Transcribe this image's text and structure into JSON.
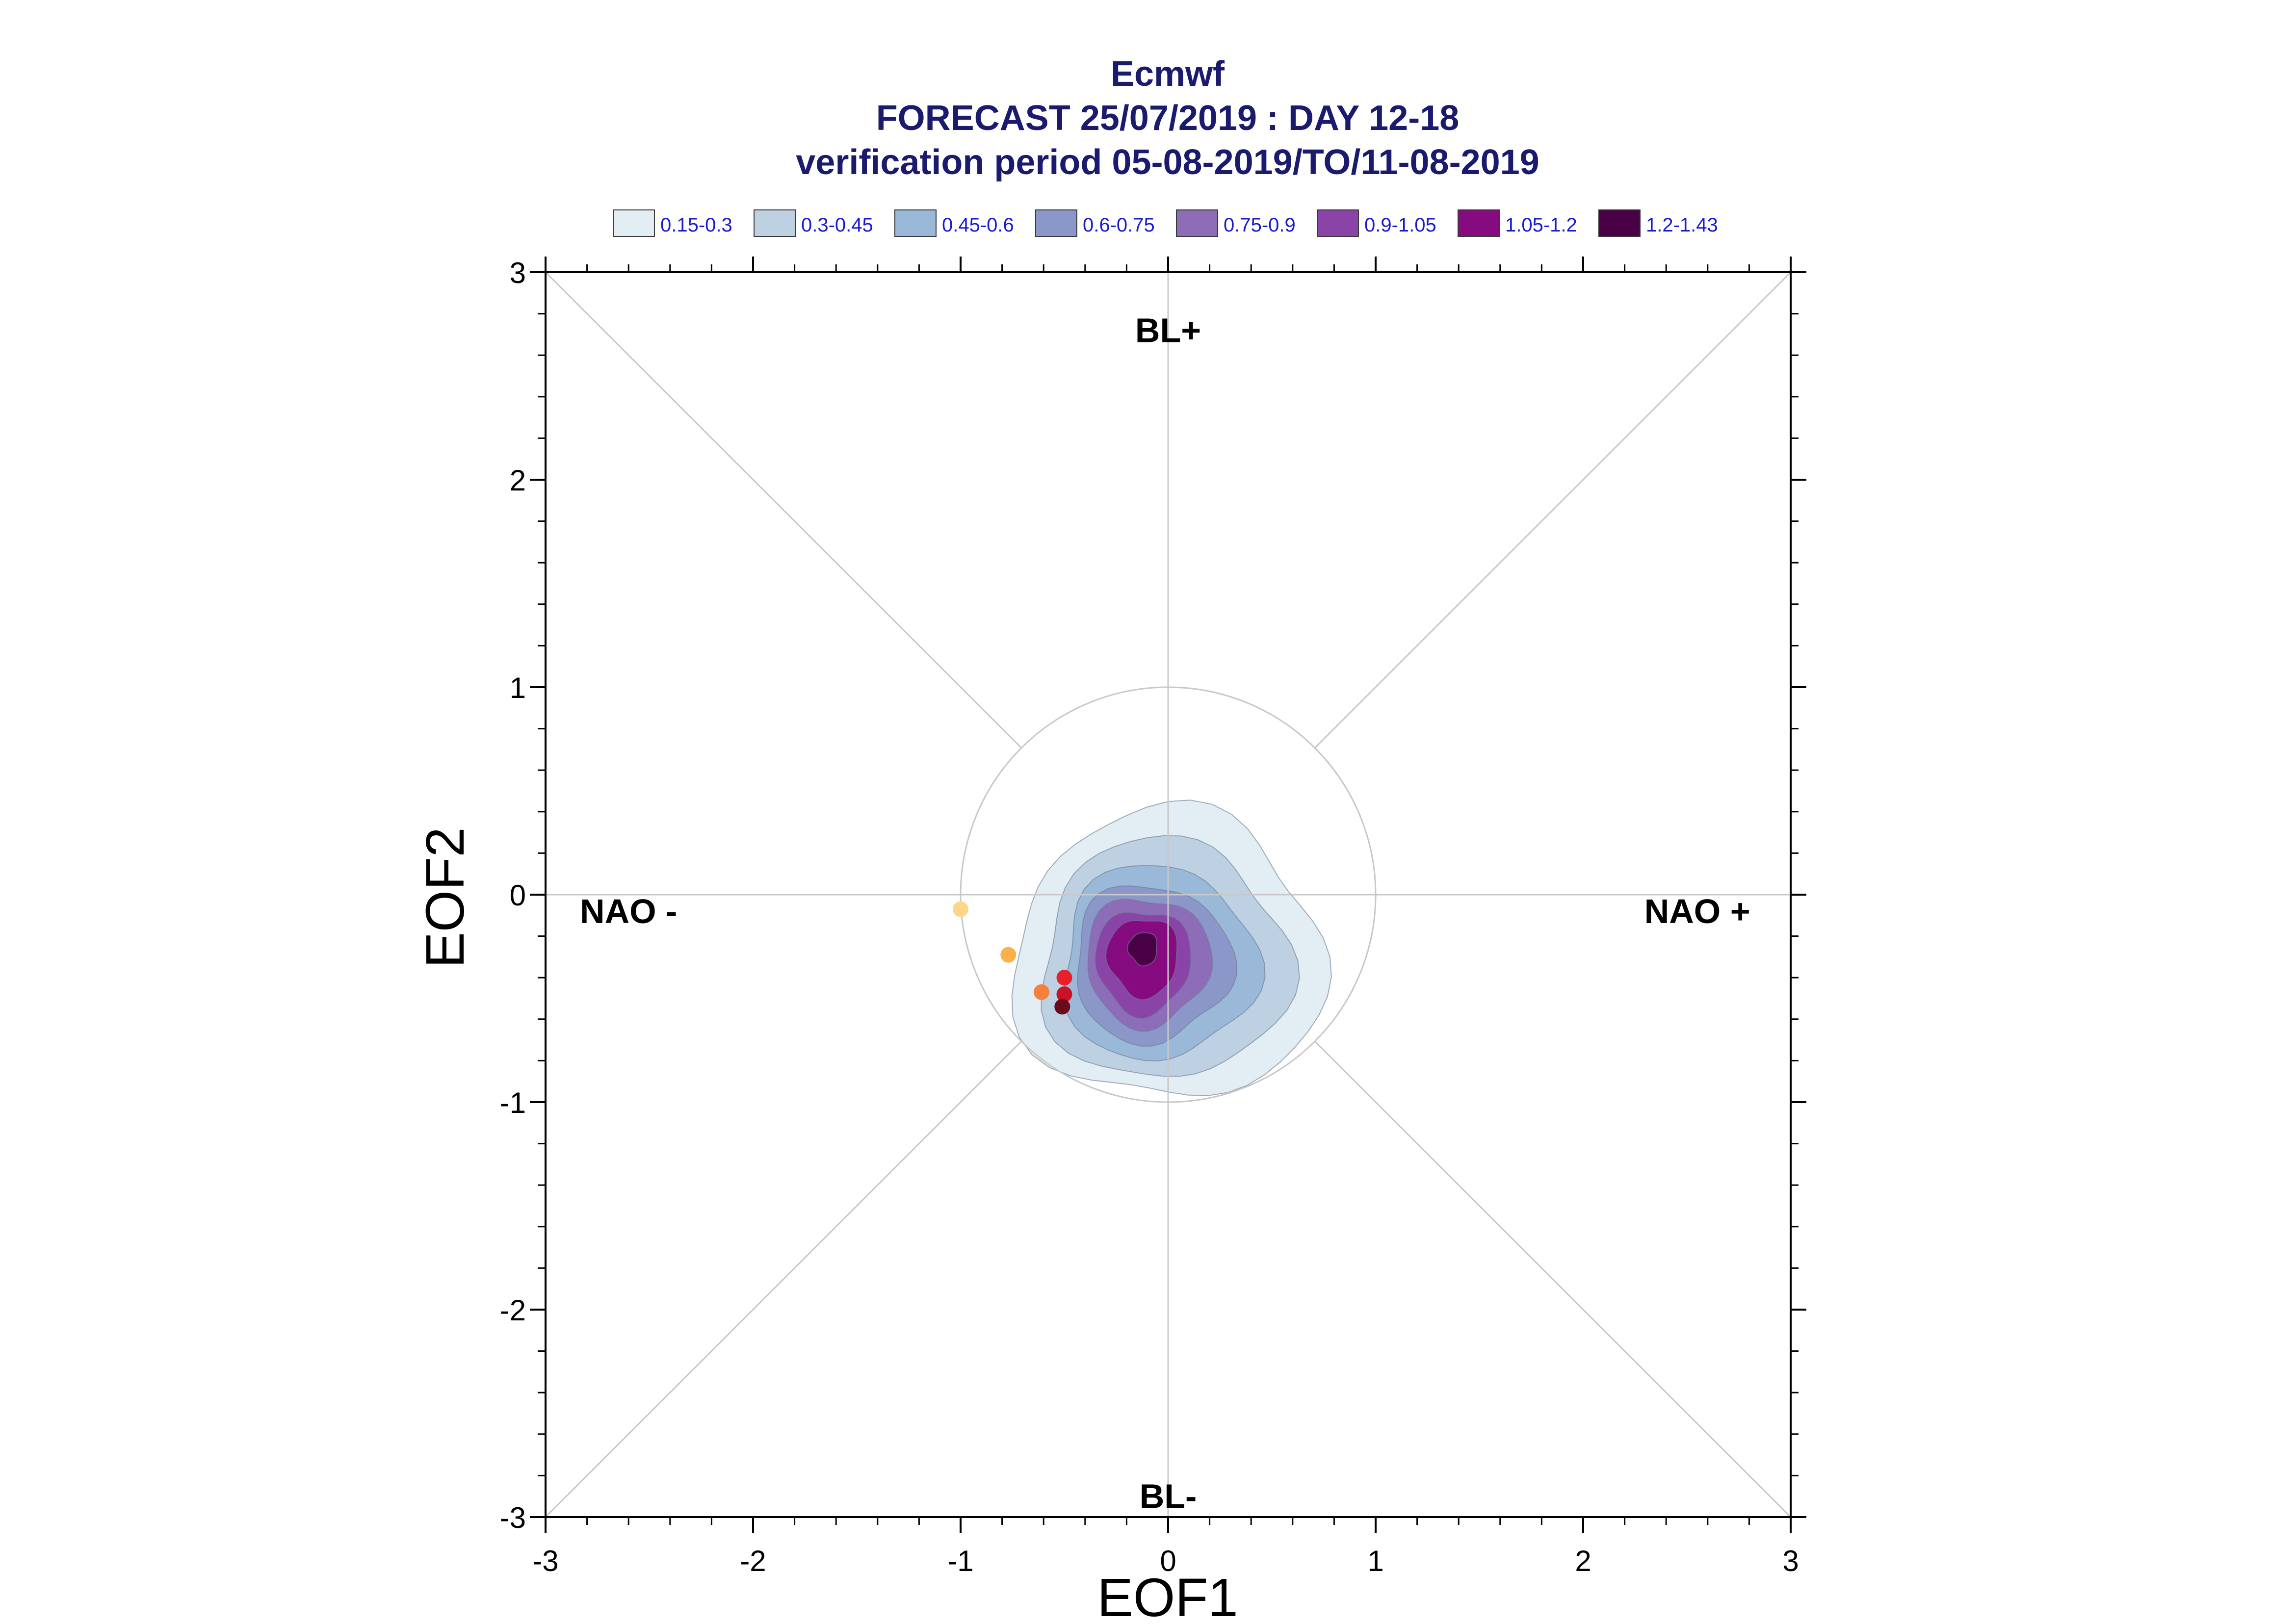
{
  "chart_data": {
    "type": "scatter",
    "title": "Ecmwf",
    "subtitle": "FORECAST 25/07/2019 : DAY 12-18",
    "subtitle2": "verification period 05-08-2019/TO/11-08-2019",
    "xlabel": "EOF1",
    "ylabel": "EOF2",
    "xlim": [
      -3,
      3
    ],
    "ylim": [
      -3,
      3
    ],
    "xticks": [
      "-3",
      "-2",
      "-1",
      "0",
      "1",
      "2",
      "3"
    ],
    "yticks": [
      "-3",
      "-2",
      "-1",
      "0",
      "1",
      "2",
      "3"
    ],
    "grid": false,
    "reference_circle_radius": 1,
    "regime_labels": [
      {
        "text": "BL+",
        "x": 0,
        "y": 2.72
      },
      {
        "text": "BL-",
        "x": 0,
        "y": -2.9
      },
      {
        "text": "NAO -",
        "x": -2.6,
        "y": -0.08
      },
      {
        "text": "NAO +",
        "x": 2.55,
        "y": -0.08
      }
    ],
    "legend": {
      "position": "top",
      "entries": [
        {
          "label": "0.15-0.3",
          "color": "#e3edf4"
        },
        {
          "label": "0.3-0.45",
          "color": "#bed1e3"
        },
        {
          "label": "0.45-0.6",
          "color": "#9ab9d8"
        },
        {
          "label": "0.6-0.75",
          "color": "#8a97c8"
        },
        {
          "label": "0.75-0.9",
          "color": "#8d6db8"
        },
        {
          "label": "0.9-1.05",
          "color": "#8a43a6"
        },
        {
          "label": "1.05-1.2",
          "color": "#860a80"
        },
        {
          "label": "1.2-1.43",
          "color": "#4a0045"
        }
      ]
    },
    "density_levels": [
      {
        "level": "0.15-0.3",
        "color": "#e3edf4",
        "cx": 0.0,
        "cy": -0.3,
        "rx": 0.75,
        "ry": 0.7
      },
      {
        "level": "0.3-0.45",
        "color": "#bed1e3",
        "cx": -0.02,
        "cy": -0.32,
        "rx": 0.6,
        "ry": 0.58
      },
      {
        "level": "0.45-0.6",
        "color": "#9ab9d8",
        "cx": -0.05,
        "cy": -0.33,
        "rx": 0.47,
        "ry": 0.47
      },
      {
        "level": "0.6-0.75",
        "color": "#8a97c8",
        "cx": -0.08,
        "cy": -0.33,
        "rx": 0.38,
        "ry": 0.38
      },
      {
        "level": "0.75-0.9",
        "color": "#8d6db8",
        "cx": -0.1,
        "cy": -0.32,
        "rx": 0.3,
        "ry": 0.31
      },
      {
        "level": "0.9-1.05",
        "color": "#8a43a6",
        "cx": -0.12,
        "cy": -0.32,
        "rx": 0.23,
        "ry": 0.25
      },
      {
        "level": "1.05-1.2",
        "color": "#860a80",
        "cx": -0.12,
        "cy": -0.3,
        "rx": 0.17,
        "ry": 0.19
      },
      {
        "level": "1.2-1.43",
        "color": "#4a0045",
        "cx": -0.12,
        "cy": -0.26,
        "rx": 0.07,
        "ry": 0.08
      }
    ],
    "points": [
      {
        "x": -1.0,
        "y": -0.07,
        "color": "#fdd68a"
      },
      {
        "x": -0.77,
        "y": -0.29,
        "color": "#fbb04a"
      },
      {
        "x": -0.61,
        "y": -0.47,
        "color": "#f5803c"
      },
      {
        "x": -0.5,
        "y": -0.4,
        "color": "#e8202a"
      },
      {
        "x": -0.5,
        "y": -0.48,
        "color": "#c81225"
      },
      {
        "x": -0.51,
        "y": -0.54,
        "color": "#6a0a1e"
      }
    ]
  }
}
